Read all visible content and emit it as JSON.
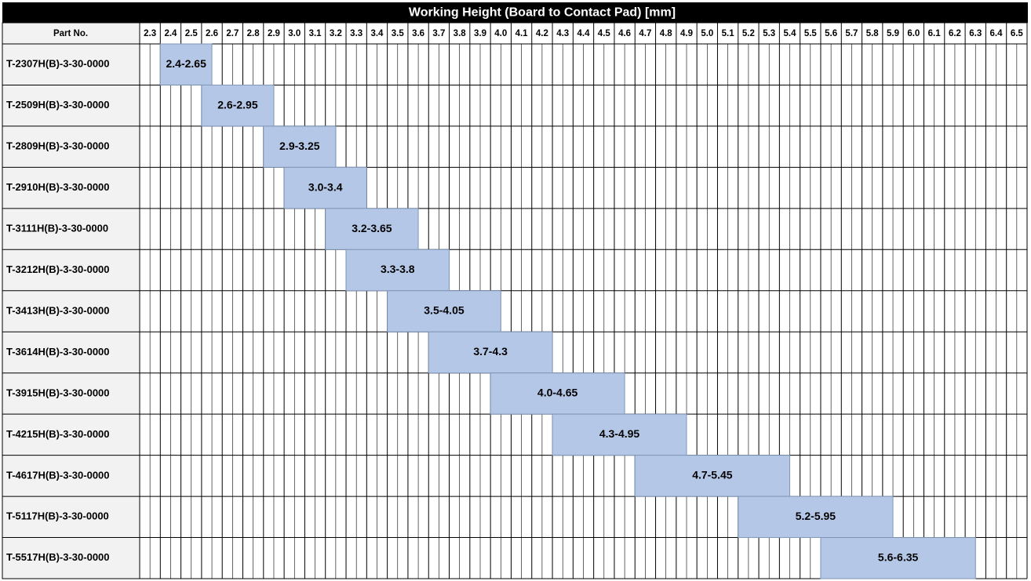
{
  "chart_data": {
    "type": "range-bar",
    "title": "Working Height (Board to Contact Pad) [mm]",
    "category_header": "Part No.",
    "categories": [
      "T-2307H(B)-3-30-0000",
      "T-2509H(B)-3-30-0000",
      "T-2809H(B)-3-30-0000",
      "T-2910H(B)-3-30-0000",
      "T-3111H(B)-3-30-0000",
      "T-3212H(B)-3-30-0000",
      "T-3413H(B)-3-30-0000",
      "T-3614H(B)-3-30-0000",
      "T-3915H(B)-3-30-0000",
      "T-4215H(B)-3-30-0000",
      "T-4617H(B)-3-30-0000",
      "T-5117H(B)-3-30-0000",
      "T-5517H(B)-3-30-0000"
    ],
    "values": [
      [
        2.4,
        2.65
      ],
      [
        2.6,
        2.95
      ],
      [
        2.9,
        3.25
      ],
      [
        3.0,
        3.4
      ],
      [
        3.2,
        3.65
      ],
      [
        3.3,
        3.8
      ],
      [
        3.5,
        4.05
      ],
      [
        3.7,
        4.3
      ],
      [
        4.0,
        4.65
      ],
      [
        4.3,
        4.95
      ],
      [
        4.7,
        5.45
      ],
      [
        5.2,
        5.95
      ],
      [
        5.6,
        6.35
      ]
    ],
    "value_labels": [
      "2.4-2.65",
      "2.6-2.95",
      "2.9-3.25",
      "3.0-3.4",
      "3.2-3.65",
      "3.3-3.8",
      "3.5-4.05",
      "3.7-4.3",
      "4.0-4.65",
      "4.3-4.95",
      "4.7-5.45",
      "5.2-5.95",
      "5.6-6.35"
    ],
    "color": "#b4c7e7",
    "xlim": [
      2.3,
      6.6
    ],
    "xticks": [
      2.3,
      2.4,
      2.5,
      2.6,
      2.7,
      2.8,
      2.9,
      {
        "value": 3,
        "label": "3.0"
      },
      3.1,
      3.2,
      3.3,
      3.4,
      3.5,
      3.6,
      3.7,
      3.8,
      3.9,
      {
        "value": 4,
        "label": "4.0"
      },
      4.1,
      4.2,
      4.3,
      4.4,
      4.5,
      4.6,
      4.7,
      4.8,
      4.9,
      {
        "value": 5,
        "label": "5.0"
      },
      5.1,
      5.2,
      5.3,
      5.4,
      5.5,
      5.6,
      5.7,
      5.8,
      5.9,
      {
        "value": 6,
        "label": "6.0"
      },
      6.1,
      6.2,
      6.3,
      6.4,
      6.5
    ]
  }
}
